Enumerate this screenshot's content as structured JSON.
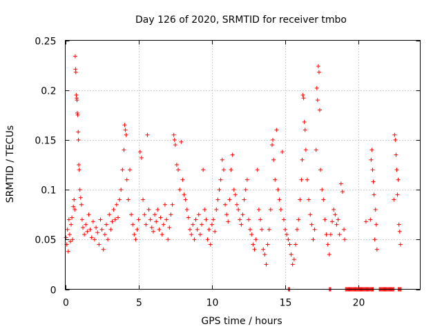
{
  "chart_data": {
    "type": "scatter",
    "title": "Day 126 of 2020, SRMTID for receiver tmbo",
    "xlabel": "GPS time / hours",
    "ylabel": "SRMTID / TECUs",
    "xlim": [
      0,
      24.2
    ],
    "ylim": [
      0,
      0.25
    ],
    "xticks": [
      0,
      5,
      10,
      15,
      20
    ],
    "xtick_labels": [
      "0",
      "5",
      "10",
      "15",
      "20"
    ],
    "yticks": [
      0,
      0.05,
      0.1,
      0.15,
      0.2,
      0.25
    ],
    "ytick_labels": [
      "0",
      "0.05",
      "0.1",
      "0.15",
      "0.2",
      "0.25"
    ],
    "grid": true,
    "marker": "+",
    "color": "#ff0000",
    "series": [
      {
        "name": "SRMTID",
        "points": [
          [
            0.05,
            0.052
          ],
          [
            0.1,
            0.045
          ],
          [
            0.15,
            0.06
          ],
          [
            0.2,
            0.038
          ],
          [
            0.25,
            0.07
          ],
          [
            0.3,
            0.055
          ],
          [
            0.35,
            0.048
          ],
          [
            0.4,
            0.065
          ],
          [
            0.45,
            0.072
          ],
          [
            0.5,
            0.05
          ],
          [
            0.55,
            0.083
          ],
          [
            0.6,
            0.09
          ],
          [
            0.65,
            0.08
          ],
          [
            0.68,
            0.234
          ],
          [
            0.7,
            0.221
          ],
          [
            0.72,
            0.218
          ],
          [
            0.75,
            0.195
          ],
          [
            0.78,
            0.192
          ],
          [
            0.8,
            0.19
          ],
          [
            0.82,
            0.177
          ],
          [
            0.85,
            0.175
          ],
          [
            0.88,
            0.158
          ],
          [
            0.9,
            0.15
          ],
          [
            0.92,
            0.125
          ],
          [
            0.95,
            0.12
          ],
          [
            1.0,
            0.1
          ],
          [
            1.05,
            0.092
          ],
          [
            1.1,
            0.085
          ],
          [
            1.15,
            0.07
          ],
          [
            1.2,
            0.062
          ],
          [
            1.3,
            0.055
          ],
          [
            1.4,
            0.065
          ],
          [
            1.5,
            0.058
          ],
          [
            1.6,
            0.075
          ],
          [
            1.7,
            0.06
          ],
          [
            1.8,
            0.052
          ],
          [
            1.9,
            0.068
          ],
          [
            2.0,
            0.05
          ],
          [
            2.1,
            0.062
          ],
          [
            2.2,
            0.057
          ],
          [
            2.3,
            0.045
          ],
          [
            2.4,
            0.07
          ],
          [
            2.5,
            0.06
          ],
          [
            2.6,
            0.04
          ],
          [
            2.7,
            0.055
          ],
          [
            2.8,
            0.065
          ],
          [
            2.9,
            0.05
          ],
          [
            3.0,
            0.075
          ],
          [
            3.1,
            0.06
          ],
          [
            3.2,
            0.068
          ],
          [
            3.3,
            0.08
          ],
          [
            3.4,
            0.07
          ],
          [
            3.5,
            0.085
          ],
          [
            3.6,
            0.072
          ],
          [
            3.7,
            0.09
          ],
          [
            3.8,
            0.1
          ],
          [
            3.9,
            0.12
          ],
          [
            4.0,
            0.14
          ],
          [
            4.05,
            0.165
          ],
          [
            4.1,
            0.16
          ],
          [
            4.15,
            0.155
          ],
          [
            4.2,
            0.11
          ],
          [
            4.3,
            0.09
          ],
          [
            4.4,
            0.12
          ],
          [
            4.5,
            0.075
          ],
          [
            4.6,
            0.065
          ],
          [
            4.7,
            0.055
          ],
          [
            4.8,
            0.05
          ],
          [
            4.9,
            0.06
          ],
          [
            5.0,
            0.07
          ],
          [
            5.1,
            0.138
          ],
          [
            5.2,
            0.132
          ],
          [
            5.3,
            0.09
          ],
          [
            5.4,
            0.075
          ],
          [
            5.5,
            0.065
          ],
          [
            5.6,
            0.155
          ],
          [
            5.7,
            0.08
          ],
          [
            5.8,
            0.07
          ],
          [
            5.9,
            0.062
          ],
          [
            6.0,
            0.058
          ],
          [
            6.1,
            0.075
          ],
          [
            6.2,
            0.068
          ],
          [
            6.3,
            0.08
          ],
          [
            6.4,
            0.06
          ],
          [
            6.5,
            0.072
          ],
          [
            6.6,
            0.055
          ],
          [
            6.7,
            0.065
          ],
          [
            6.8,
            0.085
          ],
          [
            6.9,
            0.07
          ],
          [
            7.0,
            0.05
          ],
          [
            7.1,
            0.062
          ],
          [
            7.2,
            0.075
          ],
          [
            7.3,
            0.085
          ],
          [
            7.4,
            0.155
          ],
          [
            7.45,
            0.15
          ],
          [
            7.5,
            0.145
          ],
          [
            7.6,
            0.125
          ],
          [
            7.7,
            0.12
          ],
          [
            7.8,
            0.1
          ],
          [
            7.9,
            0.148
          ],
          [
            8.0,
            0.11
          ],
          [
            8.1,
            0.095
          ],
          [
            8.2,
            0.09
          ],
          [
            8.3,
            0.08
          ],
          [
            8.4,
            0.072
          ],
          [
            8.5,
            0.06
          ],
          [
            8.6,
            0.055
          ],
          [
            8.7,
            0.065
          ],
          [
            8.8,
            0.05
          ],
          [
            8.9,
            0.07
          ],
          [
            9.0,
            0.06
          ],
          [
            9.1,
            0.075
          ],
          [
            9.2,
            0.055
          ],
          [
            9.3,
            0.065
          ],
          [
            9.4,
            0.12
          ],
          [
            9.5,
            0.08
          ],
          [
            9.6,
            0.07
          ],
          [
            9.7,
            0.05
          ],
          [
            9.8,
            0.06
          ],
          [
            9.9,
            0.045
          ],
          [
            10.0,
            0.065
          ],
          [
            10.1,
            0.07
          ],
          [
            10.2,
            0.058
          ],
          [
            10.3,
            0.08
          ],
          [
            10.4,
            0.09
          ],
          [
            10.5,
            0.1
          ],
          [
            10.6,
            0.11
          ],
          [
            10.7,
            0.13
          ],
          [
            10.8,
            0.12
          ],
          [
            10.9,
            0.085
          ],
          [
            11.0,
            0.075
          ],
          [
            11.1,
            0.068
          ],
          [
            11.2,
            0.09
          ],
          [
            11.3,
            0.12
          ],
          [
            11.4,
            0.135
          ],
          [
            11.5,
            0.1
          ],
          [
            11.6,
            0.095
          ],
          [
            11.7,
            0.085
          ],
          [
            11.8,
            0.08
          ],
          [
            11.9,
            0.07
          ],
          [
            12.0,
            0.065
          ],
          [
            12.1,
            0.075
          ],
          [
            12.2,
            0.09
          ],
          [
            12.3,
            0.1
          ],
          [
            12.4,
            0.11
          ],
          [
            12.5,
            0.07
          ],
          [
            12.6,
            0.06
          ],
          [
            12.7,
            0.055
          ],
          [
            12.8,
            0.045
          ],
          [
            12.9,
            0.04
          ],
          [
            13.0,
            0.05
          ],
          [
            13.1,
            0.12
          ],
          [
            13.2,
            0.08
          ],
          [
            13.3,
            0.07
          ],
          [
            13.4,
            0.06
          ],
          [
            13.5,
            0.04
          ],
          [
            13.6,
            0.035
          ],
          [
            13.7,
            0.025
          ],
          [
            13.8,
            0.045
          ],
          [
            13.9,
            0.06
          ],
          [
            14.0,
            0.08
          ],
          [
            14.1,
            0.145
          ],
          [
            14.15,
            0.15
          ],
          [
            14.2,
            0.13
          ],
          [
            14.3,
            0.11
          ],
          [
            14.4,
            0.16
          ],
          [
            14.5,
            0.1
          ],
          [
            14.6,
            0.09
          ],
          [
            14.7,
            0.08
          ],
          [
            14.8,
            0.138
          ],
          [
            14.9,
            0.07
          ],
          [
            15.0,
            0.06
          ],
          [
            15.1,
            0.055
          ],
          [
            15.2,
            0.05
          ],
          [
            15.3,
            0.045
          ],
          [
            15.4,
            0.035
          ],
          [
            15.5,
            0.025
          ],
          [
            15.6,
            0.03
          ],
          [
            15.7,
            0.045
          ],
          [
            15.8,
            0.06
          ],
          [
            15.9,
            0.07
          ],
          [
            16.0,
            0.09
          ],
          [
            16.1,
            0.11
          ],
          [
            16.15,
            0.13
          ],
          [
            16.2,
            0.195
          ],
          [
            16.25,
            0.192
          ],
          [
            16.3,
            0.168
          ],
          [
            16.35,
            0.16
          ],
          [
            16.4,
            0.14
          ],
          [
            16.5,
            0.11
          ],
          [
            16.6,
            0.09
          ],
          [
            16.7,
            0.075
          ],
          [
            16.8,
            0.065
          ],
          [
            16.9,
            0.05
          ],
          [
            17.0,
            0.06
          ],
          [
            17.1,
            0.14
          ],
          [
            17.15,
            0.202
          ],
          [
            17.2,
            0.19
          ],
          [
            17.25,
            0.224
          ],
          [
            17.3,
            0.218
          ],
          [
            17.35,
            0.18
          ],
          [
            17.4,
            0.12
          ],
          [
            17.5,
            0.1
          ],
          [
            17.6,
            0.09
          ],
          [
            17.7,
            0.07
          ],
          [
            17.8,
            0.055
          ],
          [
            17.9,
            0.045
          ],
          [
            18.0,
            0.035
          ],
          [
            18.1,
            0.055
          ],
          [
            18.2,
            0.068
          ],
          [
            18.3,
            0.08
          ],
          [
            18.4,
            0.075
          ],
          [
            18.5,
            0.065
          ],
          [
            18.6,
            0.07
          ],
          [
            18.7,
            0.055
          ],
          [
            18.8,
            0.106
          ],
          [
            18.9,
            0.098
          ],
          [
            19.0,
            0.06
          ],
          [
            19.05,
            0.05
          ],
          [
            20.5,
            0.068
          ],
          [
            20.8,
            0.07
          ],
          [
            20.85,
            0.13
          ],
          [
            20.9,
            0.14
          ],
          [
            20.95,
            0.12
          ],
          [
            21.0,
            0.108
          ],
          [
            21.05,
            0.095
          ],
          [
            21.1,
            0.05
          ],
          [
            21.15,
            0.08
          ],
          [
            21.2,
            0.065
          ],
          [
            21.25,
            0.04
          ],
          [
            22.4,
            0.09
          ],
          [
            22.45,
            0.155
          ],
          [
            22.5,
            0.15
          ],
          [
            22.55,
            0.135
          ],
          [
            22.6,
            0.12
          ],
          [
            22.65,
            0.095
          ],
          [
            22.7,
            0.11
          ],
          [
            22.75,
            0.065
          ],
          [
            22.8,
            0.058
          ],
          [
            22.85,
            0.045
          ]
        ]
      },
      {
        "name": "zero",
        "x_ranges": [
          [
            15.2,
            15.3
          ],
          [
            18.0,
            18.1
          ],
          [
            19.1,
            21.0
          ],
          [
            21.4,
            22.4
          ],
          [
            22.7,
            22.9
          ]
        ],
        "value": 0
      }
    ]
  }
}
